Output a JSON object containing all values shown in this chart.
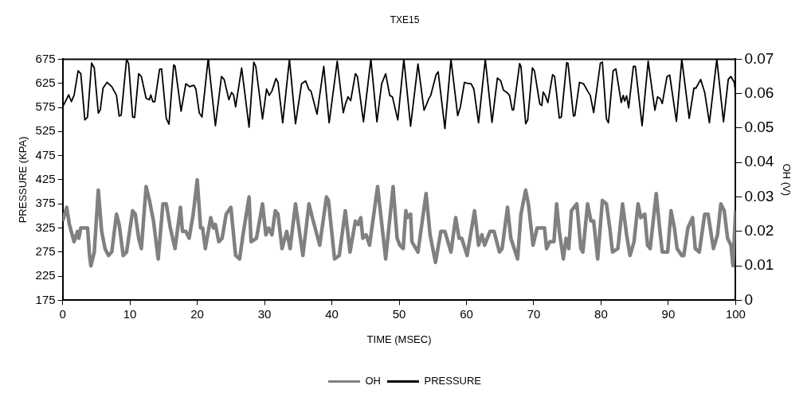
{
  "chart_data": {
    "type": "line",
    "title": "TXE15",
    "xlabel": "TIME (MSEC)",
    "ylabel": "PRESSURE (KPA)",
    "y2label": "OH (V)",
    "xlim": [
      0,
      100
    ],
    "xticks": [
      0,
      10,
      20,
      30,
      40,
      50,
      60,
      70,
      80,
      90,
      100
    ],
    "ylim": [
      175,
      675
    ],
    "yticks": [
      175,
      225,
      275,
      325,
      375,
      425,
      475,
      525,
      575,
      625,
      675
    ],
    "y2lim": [
      0,
      0.07
    ],
    "y2ticks": [
      0,
      0.01,
      0.02,
      0.03,
      0.04,
      0.05,
      0.06,
      0.07
    ],
    "grid": false,
    "legend": "bottom",
    "marker": "none",
    "line_style": "solid",
    "series": [
      {
        "name": "OH",
        "color": "#808080",
        "axis": "y2",
        "x": [
          0,
          0.6,
          1.0,
          1.7,
          2.2,
          2.4,
          2.7,
          3.2,
          3.7,
          4.0,
          4.2,
          4.7,
          5.3,
          5.8,
          6.3,
          6.8,
          7.3,
          8.0,
          8.4,
          9.0,
          9.5,
          10.4,
          10.8,
          11.3,
          11.7,
          12.4,
          12.9,
          13.5,
          14.2,
          14.9,
          15.4,
          16.0,
          16.7,
          17.5,
          17.8,
          18.3,
          18.8,
          19.4,
          20.0,
          20.5,
          20.8,
          21.2,
          22.0,
          22.4,
          22.7,
          23.2,
          23.7,
          24.3,
          25.0,
          25.7,
          26.3,
          26.8,
          27.7,
          28.0,
          28.8,
          29.7,
          30.2,
          30.6,
          31.1,
          31.6,
          32.0,
          32.6,
          33.3,
          33.8,
          34.6,
          35.7,
          36.6,
          37.1,
          38.2,
          39.2,
          39.5,
          40.4,
          41.1,
          42.0,
          42.7,
          43.5,
          43.9,
          44.3,
          44.6,
          45.1,
          45.6,
          46.8,
          48.0,
          49.1,
          49.7,
          50.1,
          50.6,
          51.0,
          51.2,
          51.7,
          51.9,
          52.8,
          54.0,
          54.6,
          55.4,
          56.2,
          56.8,
          57.7,
          58.4,
          58.9,
          59.3,
          60.1,
          61.2,
          61.8,
          62.3,
          62.7,
          63.5,
          64.1,
          64.9,
          65.3,
          66.1,
          66.6,
          67.6,
          68.1,
          68.8,
          69.2,
          69.9,
          70.5,
          71.2,
          71.6,
          71.9,
          72.4,
          73.0,
          73.4,
          73.8,
          74.4,
          74.8,
          75.2,
          75.6,
          76.4,
          77.0,
          77.3,
          78.0,
          78.5,
          78.9,
          79.5,
          80.2,
          80.8,
          81.3,
          81.7,
          82.5,
          83.2,
          83.8,
          84.3,
          84.9,
          85.5,
          85.9,
          86.5,
          86.9,
          87.3,
          88.2,
          88.7,
          89.1,
          89.9,
          90.4,
          90.9,
          91.3,
          92.0,
          92.3,
          92.9,
          93.6,
          94.0,
          94.6,
          95.4,
          95.9,
          96.7,
          97.3,
          97.8,
          98.3,
          98.8,
          99.3,
          99.6,
          100
        ],
        "values": [
          0.023,
          0.027,
          0.022,
          0.017,
          0.02,
          0.018,
          0.021,
          0.021,
          0.021,
          0.013,
          0.01,
          0.014,
          0.032,
          0.02,
          0.015,
          0.013,
          0.014,
          0.025,
          0.022,
          0.013,
          0.014,
          0.026,
          0.025,
          0.018,
          0.015,
          0.033,
          0.029,
          0.023,
          0.012,
          0.028,
          0.028,
          0.021,
          0.015,
          0.027,
          0.02,
          0.02,
          0.018,
          0.025,
          0.035,
          0.021,
          0.021,
          0.015,
          0.024,
          0.021,
          0.022,
          0.017,
          0.018,
          0.025,
          0.027,
          0.013,
          0.012,
          0.019,
          0.03,
          0.017,
          0.018,
          0.028,
          0.019,
          0.021,
          0.019,
          0.026,
          0.025,
          0.015,
          0.02,
          0.015,
          0.028,
          0.013,
          0.028,
          0.024,
          0.016,
          0.03,
          0.029,
          0.012,
          0.013,
          0.026,
          0.014,
          0.023,
          0.022,
          0.024,
          0.018,
          0.019,
          0.016,
          0.033,
          0.012,
          0.033,
          0.018,
          0.016,
          0.015,
          0.026,
          0.024,
          0.025,
          0.017,
          0.014,
          0.031,
          0.019,
          0.011,
          0.02,
          0.02,
          0.014,
          0.024,
          0.018,
          0.018,
          0.013,
          0.026,
          0.016,
          0.019,
          0.016,
          0.02,
          0.02,
          0.014,
          0.015,
          0.027,
          0.018,
          0.012,
          0.025,
          0.032,
          0.028,
          0.016,
          0.021,
          0.021,
          0.021,
          0.015,
          0.017,
          0.017,
          0.028,
          0.02,
          0.012,
          0.018,
          0.015,
          0.026,
          0.028,
          0.015,
          0.014,
          0.028,
          0.023,
          0.023,
          0.012,
          0.029,
          0.028,
          0.021,
          0.014,
          0.015,
          0.028,
          0.019,
          0.013,
          0.017,
          0.028,
          0.024,
          0.025,
          0.016,
          0.015,
          0.031,
          0.021,
          0.014,
          0.014,
          0.026,
          0.021,
          0.015,
          0.013,
          0.013,
          0.021,
          0.024,
          0.015,
          0.014,
          0.025,
          0.025,
          0.015,
          0.019,
          0.028,
          0.026,
          0.018,
          0.016,
          0.01,
          0.026
        ]
      },
      {
        "name": "PRESSURE",
        "color": "#000000",
        "x": [
          0,
          0.9,
          1.3,
          1.7,
          2.3,
          2.7,
          3.3,
          3.7,
          4.3,
          4.7,
          5.3,
          5.6,
          6.0,
          6.6,
          7.3,
          8.0,
          8.4,
          8.7,
          9.5,
          9.8,
          10.4,
          10.7,
          11.3,
          11.7,
          12.4,
          12.9,
          13.1,
          13.4,
          13.7,
          14.4,
          14.7,
          15.4,
          15.8,
          16.5,
          16.7,
          17.6,
          18.3,
          18.9,
          19.5,
          19.8,
          20.3,
          20.7,
          21.6,
          21.7,
          22.7,
          23.6,
          24.0,
          24.7,
          25.1,
          25.4,
          25.7,
          26.6,
          27.7,
          28.4,
          28.7,
          29.7,
          30.3,
          30.7,
          31.1,
          31.7,
          32.0,
          32.7,
          33.7,
          34.6,
          35.5,
          36.1,
          36.6,
          36.9,
          37.8,
          38.8,
          39.6,
          40.8,
          41.7,
          42.0,
          42.4,
          42.8,
          43.5,
          43.8,
          44.7,
          45.8,
          46.7,
          47.4,
          48.0,
          48.6,
          49.0,
          49.8,
          50.7,
          51.7,
          52.8,
          53.7,
          54.1,
          54.4,
          54.7,
          55.5,
          55.8,
          56.8,
          57.7,
          58.7,
          59.1,
          59.7,
          60.1,
          60.7,
          61.1,
          61.8,
          62.8,
          63.8,
          64.6,
          65.1,
          65.5,
          66.0,
          66.4,
          66.8,
          67.0,
          67.9,
          68.1,
          68.8,
          69.1,
          69.8,
          70.1,
          70.9,
          71.2,
          71.4,
          71.7,
          72.1,
          72.8,
          73.1,
          73.8,
          74.1,
          74.9,
          75.1,
          75.9,
          76.1,
          76.8,
          77.4,
          78.0,
          78.4,
          78.9,
          79.9,
          80.2,
          80.8,
          81.1,
          81.8,
          82.2,
          83.0,
          83.3,
          83.5,
          83.8,
          84.1,
          84.8,
          85.1,
          86.1,
          87.0,
          88.0,
          88.4,
          88.8,
          89.1,
          89.8,
          90.2,
          91.2,
          92.0,
          93.1,
          93.8,
          94.1,
          94.8,
          95.4,
          96.1,
          97.2,
          98.2,
          98.9,
          99.3,
          99.8,
          100
        ],
        "values": [
          576,
          601,
          587,
          600,
          651,
          645,
          549,
          555,
          667,
          657,
          563,
          570,
          615,
          627,
          618,
          600,
          557,
          559,
          675,
          666,
          555,
          554,
          645,
          639,
          594,
          591,
          601,
          587,
          587,
          654,
          655,
          552,
          540,
          663,
          661,
          567,
          624,
          618,
          621,
          613,
          564,
          555,
          673,
          666,
          537,
          639,
          633,
          591,
          606,
          601,
          576,
          657,
          534,
          669,
          660,
          551,
          613,
          600,
          609,
          635,
          627,
          543,
          675,
          541,
          624,
          630,
          612,
          609,
          561,
          660,
          543,
          671,
          564,
          581,
          597,
          589,
          645,
          639,
          545,
          675,
          545,
          624,
          645,
          600,
          597,
          549,
          675,
          536,
          665,
          569,
          582,
          593,
          600,
          643,
          649,
          531,
          675,
          558,
          576,
          627,
          625,
          624,
          613,
          543,
          675,
          544,
          636,
          630,
          611,
          606,
          600,
          570,
          570,
          666,
          660,
          541,
          549,
          657,
          651,
          582,
          579,
          607,
          600,
          585,
          643,
          639,
          553,
          555,
          668,
          666,
          557,
          558,
          627,
          624,
          609,
          600,
          564,
          667,
          669,
          551,
          543,
          651,
          655,
          585,
          600,
          588,
          599,
          574,
          660,
          660,
          537,
          671,
          569,
          597,
          593,
          583,
          639,
          642,
          546,
          675,
          552,
          615,
          615,
          633,
          606,
          543,
          675,
          545,
          633,
          639,
          627,
          603
        ]
      }
    ]
  }
}
